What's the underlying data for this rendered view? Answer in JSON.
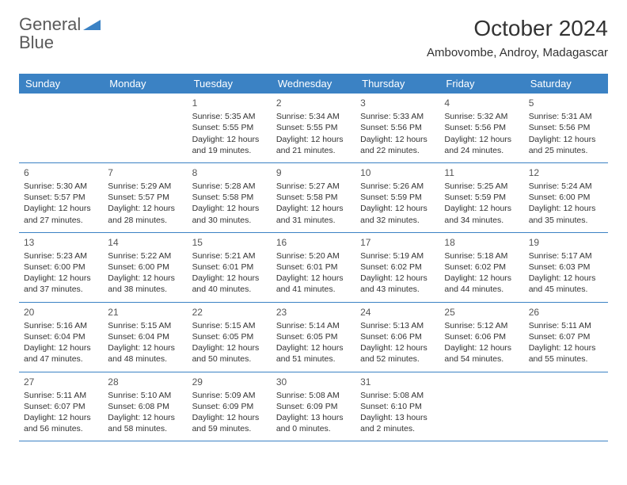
{
  "logo": {
    "word1": "General",
    "word2": "Blue"
  },
  "title": "October 2024",
  "location": "Ambovombe, Androy, Madagascar",
  "colors": {
    "header_bg": "#3b82c4",
    "header_text": "#ffffff",
    "border": "#3b82c4",
    "text": "#333333",
    "logo_gray": "#5a5a5a",
    "logo_blue": "#3b82c4",
    "background": "#ffffff"
  },
  "weekdays": [
    "Sunday",
    "Monday",
    "Tuesday",
    "Wednesday",
    "Thursday",
    "Friday",
    "Saturday"
  ],
  "weeks": [
    [
      null,
      null,
      {
        "n": "1",
        "sr": "Sunrise: 5:35 AM",
        "ss": "Sunset: 5:55 PM",
        "dl": "Daylight: 12 hours and 19 minutes."
      },
      {
        "n": "2",
        "sr": "Sunrise: 5:34 AM",
        "ss": "Sunset: 5:55 PM",
        "dl": "Daylight: 12 hours and 21 minutes."
      },
      {
        "n": "3",
        "sr": "Sunrise: 5:33 AM",
        "ss": "Sunset: 5:56 PM",
        "dl": "Daylight: 12 hours and 22 minutes."
      },
      {
        "n": "4",
        "sr": "Sunrise: 5:32 AM",
        "ss": "Sunset: 5:56 PM",
        "dl": "Daylight: 12 hours and 24 minutes."
      },
      {
        "n": "5",
        "sr": "Sunrise: 5:31 AM",
        "ss": "Sunset: 5:56 PM",
        "dl": "Daylight: 12 hours and 25 minutes."
      }
    ],
    [
      {
        "n": "6",
        "sr": "Sunrise: 5:30 AM",
        "ss": "Sunset: 5:57 PM",
        "dl": "Daylight: 12 hours and 27 minutes."
      },
      {
        "n": "7",
        "sr": "Sunrise: 5:29 AM",
        "ss": "Sunset: 5:57 PM",
        "dl": "Daylight: 12 hours and 28 minutes."
      },
      {
        "n": "8",
        "sr": "Sunrise: 5:28 AM",
        "ss": "Sunset: 5:58 PM",
        "dl": "Daylight: 12 hours and 30 minutes."
      },
      {
        "n": "9",
        "sr": "Sunrise: 5:27 AM",
        "ss": "Sunset: 5:58 PM",
        "dl": "Daylight: 12 hours and 31 minutes."
      },
      {
        "n": "10",
        "sr": "Sunrise: 5:26 AM",
        "ss": "Sunset: 5:59 PM",
        "dl": "Daylight: 12 hours and 32 minutes."
      },
      {
        "n": "11",
        "sr": "Sunrise: 5:25 AM",
        "ss": "Sunset: 5:59 PM",
        "dl": "Daylight: 12 hours and 34 minutes."
      },
      {
        "n": "12",
        "sr": "Sunrise: 5:24 AM",
        "ss": "Sunset: 6:00 PM",
        "dl": "Daylight: 12 hours and 35 minutes."
      }
    ],
    [
      {
        "n": "13",
        "sr": "Sunrise: 5:23 AM",
        "ss": "Sunset: 6:00 PM",
        "dl": "Daylight: 12 hours and 37 minutes."
      },
      {
        "n": "14",
        "sr": "Sunrise: 5:22 AM",
        "ss": "Sunset: 6:00 PM",
        "dl": "Daylight: 12 hours and 38 minutes."
      },
      {
        "n": "15",
        "sr": "Sunrise: 5:21 AM",
        "ss": "Sunset: 6:01 PM",
        "dl": "Daylight: 12 hours and 40 minutes."
      },
      {
        "n": "16",
        "sr": "Sunrise: 5:20 AM",
        "ss": "Sunset: 6:01 PM",
        "dl": "Daylight: 12 hours and 41 minutes."
      },
      {
        "n": "17",
        "sr": "Sunrise: 5:19 AM",
        "ss": "Sunset: 6:02 PM",
        "dl": "Daylight: 12 hours and 43 minutes."
      },
      {
        "n": "18",
        "sr": "Sunrise: 5:18 AM",
        "ss": "Sunset: 6:02 PM",
        "dl": "Daylight: 12 hours and 44 minutes."
      },
      {
        "n": "19",
        "sr": "Sunrise: 5:17 AM",
        "ss": "Sunset: 6:03 PM",
        "dl": "Daylight: 12 hours and 45 minutes."
      }
    ],
    [
      {
        "n": "20",
        "sr": "Sunrise: 5:16 AM",
        "ss": "Sunset: 6:04 PM",
        "dl": "Daylight: 12 hours and 47 minutes."
      },
      {
        "n": "21",
        "sr": "Sunrise: 5:15 AM",
        "ss": "Sunset: 6:04 PM",
        "dl": "Daylight: 12 hours and 48 minutes."
      },
      {
        "n": "22",
        "sr": "Sunrise: 5:15 AM",
        "ss": "Sunset: 6:05 PM",
        "dl": "Daylight: 12 hours and 50 minutes."
      },
      {
        "n": "23",
        "sr": "Sunrise: 5:14 AM",
        "ss": "Sunset: 6:05 PM",
        "dl": "Daylight: 12 hours and 51 minutes."
      },
      {
        "n": "24",
        "sr": "Sunrise: 5:13 AM",
        "ss": "Sunset: 6:06 PM",
        "dl": "Daylight: 12 hours and 52 minutes."
      },
      {
        "n": "25",
        "sr": "Sunrise: 5:12 AM",
        "ss": "Sunset: 6:06 PM",
        "dl": "Daylight: 12 hours and 54 minutes."
      },
      {
        "n": "26",
        "sr": "Sunrise: 5:11 AM",
        "ss": "Sunset: 6:07 PM",
        "dl": "Daylight: 12 hours and 55 minutes."
      }
    ],
    [
      {
        "n": "27",
        "sr": "Sunrise: 5:11 AM",
        "ss": "Sunset: 6:07 PM",
        "dl": "Daylight: 12 hours and 56 minutes."
      },
      {
        "n": "28",
        "sr": "Sunrise: 5:10 AM",
        "ss": "Sunset: 6:08 PM",
        "dl": "Daylight: 12 hours and 58 minutes."
      },
      {
        "n": "29",
        "sr": "Sunrise: 5:09 AM",
        "ss": "Sunset: 6:09 PM",
        "dl": "Daylight: 12 hours and 59 minutes."
      },
      {
        "n": "30",
        "sr": "Sunrise: 5:08 AM",
        "ss": "Sunset: 6:09 PM",
        "dl": "Daylight: 13 hours and 0 minutes."
      },
      {
        "n": "31",
        "sr": "Sunrise: 5:08 AM",
        "ss": "Sunset: 6:10 PM",
        "dl": "Daylight: 13 hours and 2 minutes."
      },
      null,
      null
    ]
  ]
}
